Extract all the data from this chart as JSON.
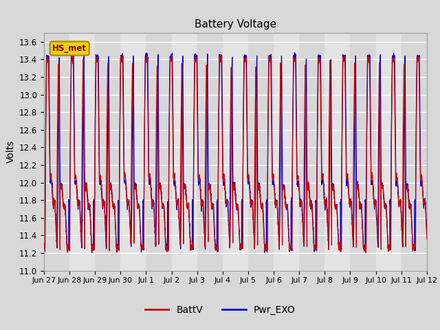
{
  "title": "Battery Voltage",
  "ylabel": "Volts",
  "ylim": [
    11.0,
    13.7
  ],
  "yticks": [
    11.0,
    11.2,
    11.4,
    11.6,
    11.8,
    12.0,
    12.2,
    12.4,
    12.6,
    12.8,
    13.0,
    13.2,
    13.4,
    13.6
  ],
  "x_tick_labels": [
    "Jun 27",
    "Jun 28",
    "Jun 29",
    "Jun 30",
    "Jul 1",
    "Jul 2",
    "Jul 3",
    "Jul 4",
    "Jul 5",
    "Jul 6",
    "Jul 7",
    "Jul 8",
    "Jul 9",
    "Jul 10",
    "Jul 11",
    "Jul 12"
  ],
  "batt_color": "#cc0000",
  "exo_color": "#0000cc",
  "legend_label_batt": "BattV",
  "legend_label_exo": "Pwr_EXO",
  "annotation_text": "HS_met",
  "bg_color": "#d8d8d8",
  "plot_bg_color": "#e8e8e8",
  "grid_color": "#ffffff",
  "num_days": 15.5,
  "points_per_day": 288,
  "charge_peak": 13.42,
  "discharge_min": 11.22,
  "mid_level": 12.05,
  "eve_level": 11.75
}
